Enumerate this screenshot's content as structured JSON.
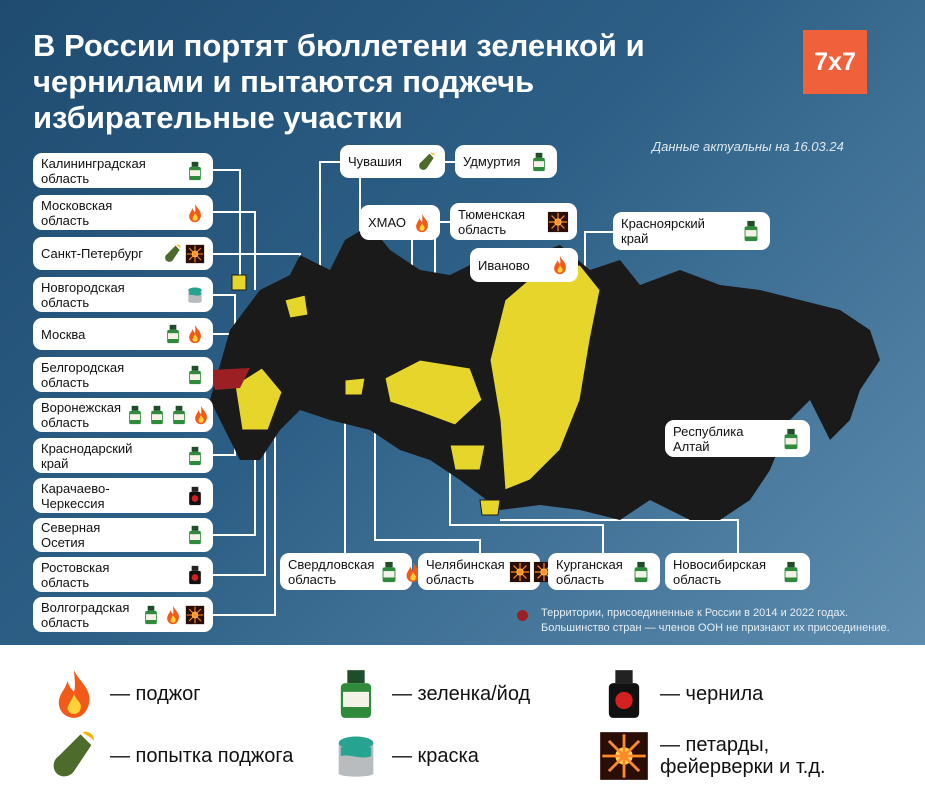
{
  "title": "В России портят бюллетени зеленкой и чернилами и пытаются поджечь избирательные участки",
  "logo": "7x7",
  "date_note": "Данные актуальны на 16.03.24",
  "colors": {
    "background": "#2d5f86",
    "affected": "#e6d52a",
    "russia": "#1a1a1a",
    "annexed": "#9c1f24",
    "logo": "#f0603a"
  },
  "regions": [
    {
      "name": "Калининградская\nобласть",
      "icons": [
        "green"
      ]
    },
    {
      "name": "Московская\nобласть",
      "icons": [
        "fire"
      ]
    },
    {
      "name": "Санкт-Петербург",
      "icons": [
        "molotov",
        "fireworks"
      ]
    },
    {
      "name": "Новгородская\nобласть",
      "icons": [
        "paint"
      ]
    },
    {
      "name": "Москва",
      "icons": [
        "green",
        "fire"
      ]
    },
    {
      "name": "Белгородская\nобласть",
      "icons": [
        "green"
      ]
    },
    {
      "name": "Воронежская\nобласть",
      "icons": [
        "green",
        "green",
        "green",
        "fire"
      ]
    },
    {
      "name": "Краснодарский\nкрай",
      "icons": [
        "green"
      ]
    },
    {
      "name": "Карачаево-\nЧеркессия",
      "icons": [
        "ink"
      ]
    },
    {
      "name": "Северная\nОсетия",
      "icons": [
        "green"
      ]
    },
    {
      "name": "Ростовская\nобласть",
      "icons": [
        "ink"
      ]
    },
    {
      "name": "Волгоградская\nобласть",
      "icons": [
        "green",
        "fire",
        "fireworks"
      ]
    },
    {
      "name": "Чувашия",
      "icons": [
        "molotov"
      ]
    },
    {
      "name": "Удмуртия",
      "icons": [
        "green"
      ]
    },
    {
      "name": "ХМАО",
      "icons": [
        "fire"
      ]
    },
    {
      "name": "Тюменская\nобласть",
      "icons": [
        "fireworks"
      ]
    },
    {
      "name": "Иваново",
      "icons": [
        "fire"
      ]
    },
    {
      "name": "Красноярский\nкрай",
      "icons": [
        "green"
      ]
    },
    {
      "name": "Республика\nАлтай",
      "icons": [
        "green"
      ]
    },
    {
      "name": "Свердловская\nобласть",
      "icons": [
        "green",
        "fire",
        "paint",
        "paint"
      ]
    },
    {
      "name": "Челябинская\nобласть",
      "icons": [
        "fireworks",
        "fireworks"
      ]
    },
    {
      "name": "Курганская\nобласть",
      "icons": [
        "green"
      ]
    },
    {
      "name": "Новосибирская\nобласть",
      "icons": [
        "green"
      ]
    }
  ],
  "annex_note": "Территории, присоединенные к России в 2014 и 2022 годах.\nБольшинство стран — членов ООН не признают их присоединение.",
  "legend": [
    {
      "icon": "fire",
      "label": "— поджог"
    },
    {
      "icon": "green",
      "label": "— зеленка/йод"
    },
    {
      "icon": "ink",
      "label": "— чернила"
    },
    {
      "icon": "molotov",
      "label": "— попытка поджога"
    },
    {
      "icon": "paint",
      "label": "— краска"
    },
    {
      "icon": "fireworks",
      "label": "— петарды,\nфейерверки и т.д."
    }
  ]
}
